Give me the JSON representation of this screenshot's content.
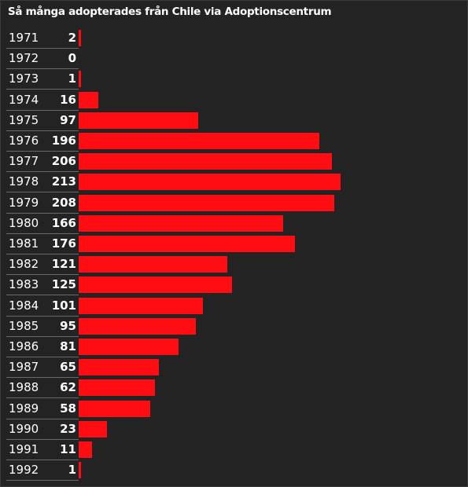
{
  "title": "Så många adopterades från Chile via Adoptionscentrum",
  "colors": {
    "bar": "#ff0d13",
    "background": "#232323",
    "text": "#ffffff"
  },
  "chart_data": {
    "type": "bar",
    "orientation": "horizontal",
    "title": "Så många adopterades från Chile via Adoptionscentrum",
    "categories": [
      "1971",
      "1972",
      "1973",
      "1974",
      "1975",
      "1976",
      "1977",
      "1978",
      "1979",
      "1980",
      "1981",
      "1982",
      "1983",
      "1984",
      "1985",
      "1986",
      "1987",
      "1988",
      "1989",
      "1990",
      "1991",
      "1992"
    ],
    "values": [
      2,
      0,
      1,
      16,
      97,
      196,
      206,
      213,
      208,
      166,
      176,
      121,
      125,
      101,
      95,
      81,
      65,
      62,
      58,
      23,
      11,
      1
    ],
    "xlim": [
      0,
      213
    ],
    "grid": false,
    "legend": "none"
  }
}
